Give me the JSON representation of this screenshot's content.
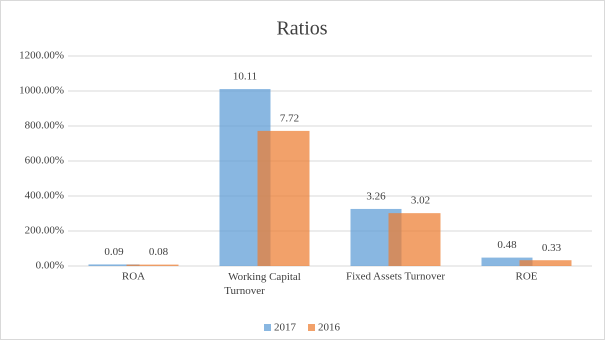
{
  "chart_data": {
    "type": "bar",
    "title": "Ratios",
    "categories": [
      "ROA",
      "Working Capital Turnover",
      "Fixed Assets Turnover",
      "ROE"
    ],
    "series": [
      {
        "name": "2017",
        "color": "#5b9bd5",
        "values": [
          9,
          1011,
          326,
          48
        ],
        "value_labels": [
          "0.09",
          "10.11",
          "3.26",
          "0.48"
        ]
      },
      {
        "name": "2016",
        "color": "#ed7d31",
        "values": [
          8,
          772,
          302,
          33
        ],
        "value_labels": [
          "0.08",
          "7.72",
          "3.02",
          "0.33"
        ]
      }
    ],
    "ylim": [
      0,
      1200
    ],
    "yticks": [
      {
        "value": 0,
        "label": "0.00%"
      },
      {
        "value": 200,
        "label": "200.00%"
      },
      {
        "value": 400,
        "label": "400.00%"
      },
      {
        "value": 600,
        "label": "600.00%"
      },
      {
        "value": 800,
        "label": "800.00%"
      },
      {
        "value": 1000,
        "label": "1000.00%"
      },
      {
        "value": 1200,
        "label": "1200.00%"
      }
    ],
    "grid": true,
    "legend": "bottom"
  }
}
